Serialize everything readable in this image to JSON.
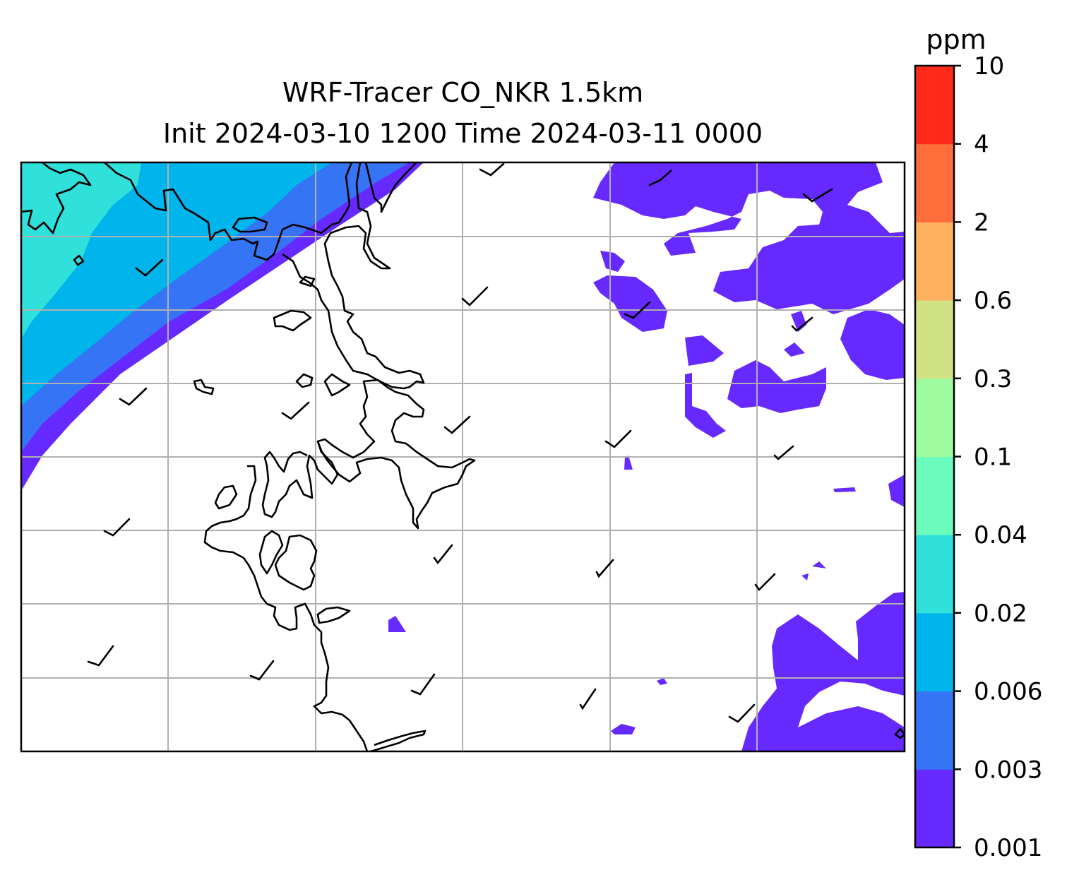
{
  "figure": {
    "title_line1": "WRF-Tracer CO_NKR 1.5km",
    "title_line2": "Init 2024-03-10 1200 Time 2024-03-11 0000"
  },
  "colorbar": {
    "unit": "ppm",
    "levels": [
      "0.001",
      "0.003",
      "0.006",
      "0.02",
      "0.04",
      "0.1",
      "0.3",
      "0.6",
      "2",
      "4",
      "10"
    ],
    "colors": [
      "#6629ff",
      "#3574f5",
      "#00b5eb",
      "#30e0da",
      "#6afbbd",
      "#9efb9e",
      "#d0e284",
      "#ffb160",
      "#ff6d3b",
      "#ff2a1a"
    ]
  },
  "map": {
    "gridlines": true,
    "coastline_color": "#000000",
    "land_color": "#ffffff",
    "wind_barbs": "present"
  }
}
